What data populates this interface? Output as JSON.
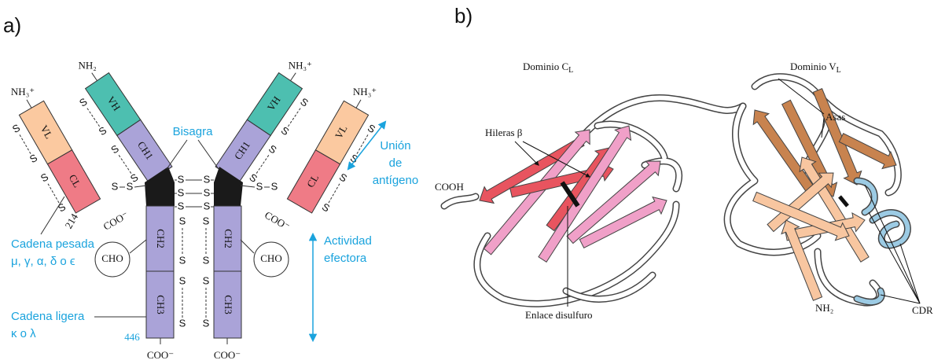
{
  "panel_a": {
    "label": "a)",
    "domains": {
      "vl": "VL",
      "cl": "CL",
      "vh": "VH",
      "ch1": "CH1",
      "ch2": "CH2",
      "ch3": "CH3"
    },
    "nh2": "NH₂",
    "nh3": "NH₃⁺",
    "coo": "COO⁻",
    "disulfide": "S",
    "hinge": "Bisagra",
    "antigen": [
      "Unión",
      "de",
      "antígeno"
    ],
    "effector": [
      "Actividad",
      "efectora"
    ],
    "heavy": [
      "Cadena pesada",
      "μ, γ, α, δ o ϵ"
    ],
    "light": [
      "Cadena ligera",
      "κ o λ"
    ],
    "cho": "CHO",
    "residue_light": "214",
    "residue_heavy": "446"
  },
  "panel_b": {
    "label": "b)",
    "domain_cl": {
      "text": "Dominio C",
      "sub": "L"
    },
    "domain_vl": {
      "text": "Dominio V",
      "sub": "L"
    },
    "strands": "Hileras β",
    "loops": "Asas",
    "cooh": "COOH",
    "disulfide_bond": "Enlace disulfuro",
    "nh2": "NH₂",
    "cdr": "CDR"
  }
}
